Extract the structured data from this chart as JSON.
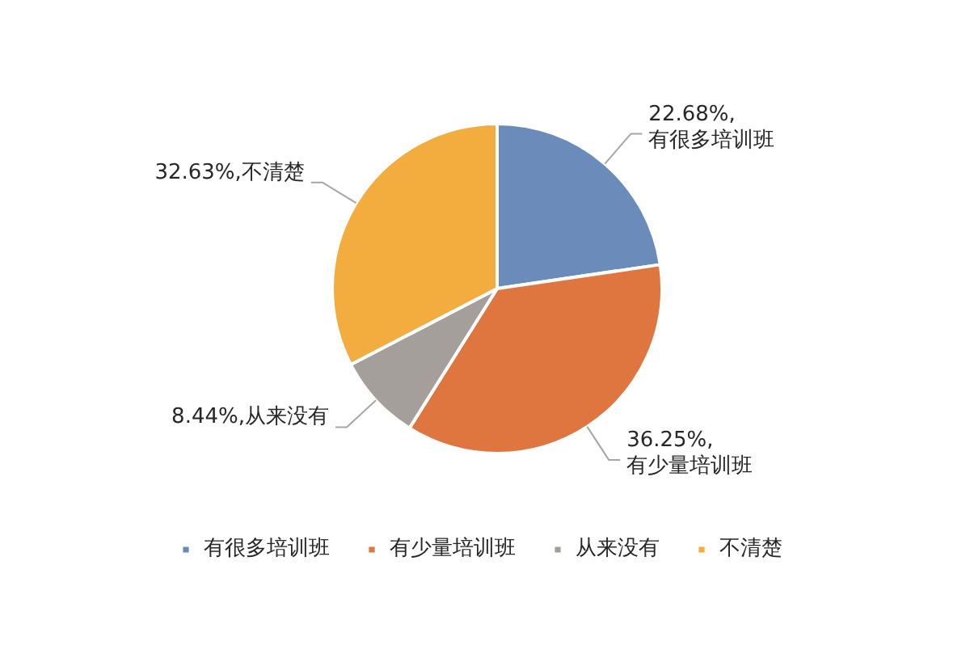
{
  "chart_data": {
    "type": "pie",
    "categories": [
      "有很多培训班",
      "有少量培训班",
      "从来没有",
      "不清楚"
    ],
    "values": [
      22.68,
      36.25,
      8.44,
      32.63
    ],
    "colors": [
      "#6b8cbb",
      "#e0763f",
      "#a59f9b",
      "#f2ad3e"
    ],
    "value_labels": [
      "22.68%,\n有很多培训班",
      "36.25%,\n有少量培训班",
      "8.44%,从来没有",
      "32.63%,不清楚"
    ],
    "legend": "bottom"
  }
}
